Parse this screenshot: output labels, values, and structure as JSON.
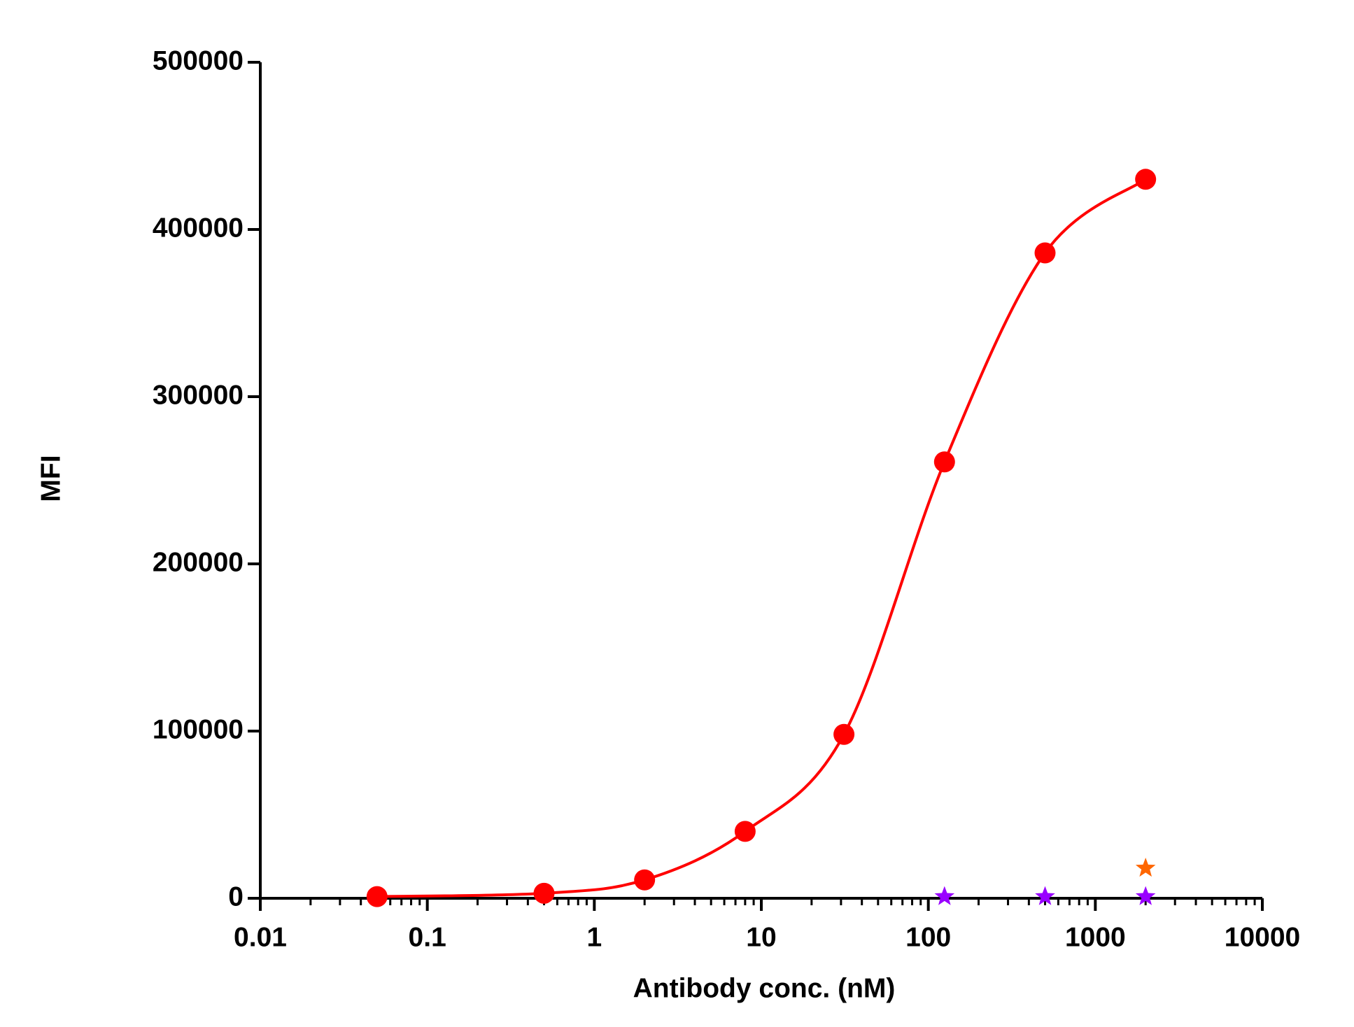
{
  "chart_data": {
    "type": "scatter",
    "x_label": "Antibody conc. (nM)",
    "y_label": "MFI",
    "x_scale": "log",
    "xlim": [
      0.01,
      10000
    ],
    "xticks": [
      0.01,
      0.1,
      1,
      10,
      100,
      1000,
      10000
    ],
    "ylim": [
      0,
      500000
    ],
    "yticks": [
      0,
      100000,
      200000,
      300000,
      400000,
      500000
    ],
    "series": [
      {
        "color": "#ff0000",
        "marker": "circle",
        "fit_line": true,
        "x": [
          0.05,
          0.5,
          2,
          8,
          31.25,
          125,
          500,
          2000
        ],
        "values": [
          1000,
          3000,
          11000,
          40000,
          98000,
          261000,
          386000,
          430000
        ]
      },
      {
        "color": "#9900ff",
        "marker": "star",
        "x": [
          125,
          500,
          2000
        ],
        "values": [
          1000,
          1000,
          1000
        ]
      },
      {
        "color": "#ff6600",
        "marker": "star",
        "x": [
          2000
        ],
        "values": [
          18000
        ]
      }
    ]
  }
}
